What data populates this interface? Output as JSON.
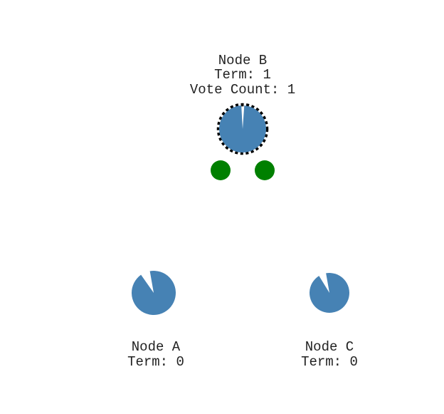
{
  "nodes": [
    {
      "id": "b",
      "name": "Node B",
      "term": "Term: 1",
      "vote_count": "Vote Count: 1",
      "is_candidate": true,
      "timeout_remaining": 0.98,
      "votes_pending": 2
    },
    {
      "id": "a",
      "name": "Node A",
      "term": "Term: 0",
      "timeout_remaining": 0.93
    },
    {
      "id": "c",
      "name": "Node C",
      "term": "Term: 0",
      "timeout_remaining": 0.94
    }
  ],
  "colors": {
    "node": "#4682b4",
    "vote_message": "#008000",
    "candidate_ring": "#000000",
    "text": "#222222"
  }
}
